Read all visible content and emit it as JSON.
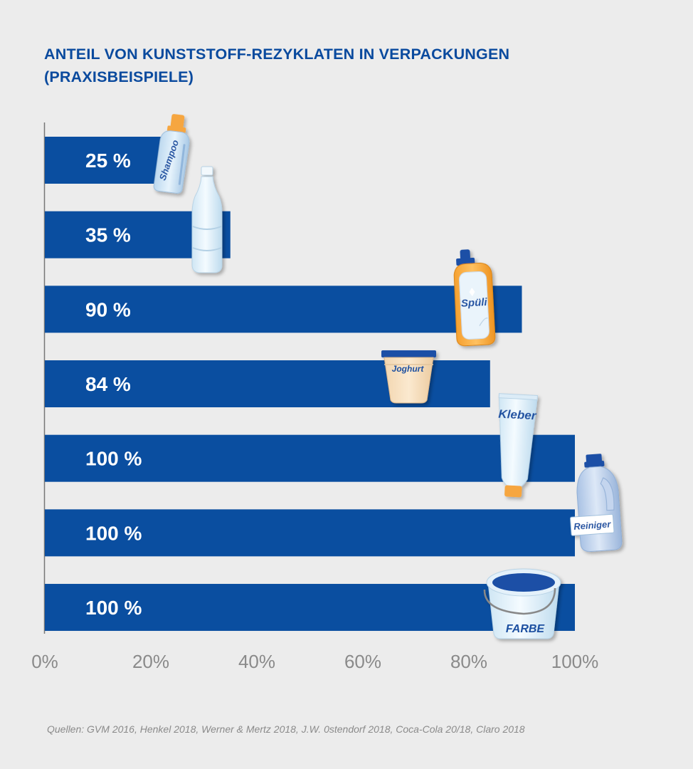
{
  "title_lines": [
    "ANTEIL VON KUNSTSTOFF-REZYKLATEN IN VERPACKUNGEN",
    "(PRAXISBEISPIELE)"
  ],
  "source": "Quellen: GVM 2016, Henkel 2018, Werner & Mertz 2018, J.W. 0stendorf 2018, Coca-Cola 20/18, Claro 2018",
  "colors": {
    "bar": "#0a4ea0",
    "title": "#0a4a9e",
    "axis_tick": "#8a8a8a",
    "background": "#ececec"
  },
  "chart_data": {
    "type": "bar",
    "orientation": "horizontal",
    "categories": [
      "Shampoo",
      "Wasserflasche",
      "Spüli",
      "Joghurt",
      "Kleber",
      "Reiniger",
      "FARBE"
    ],
    "values": [
      25,
      35,
      90,
      84,
      100,
      100,
      100
    ],
    "data_labels": [
      "25 %",
      "35 %",
      "90 %",
      "84 %",
      "100 %",
      "100 %",
      "100 %"
    ],
    "xlim": [
      0,
      100
    ],
    "x_ticks": [
      "0%",
      "20%",
      "40%",
      "60%",
      "80%",
      "100%"
    ],
    "grid": false,
    "icons": [
      "shampoo-bottle-icon",
      "water-bottle-icon",
      "dish-soap-bottle-icon",
      "yogurt-cup-icon",
      "glue-tube-icon",
      "detergent-jug-icon",
      "paint-bucket-icon"
    ]
  }
}
